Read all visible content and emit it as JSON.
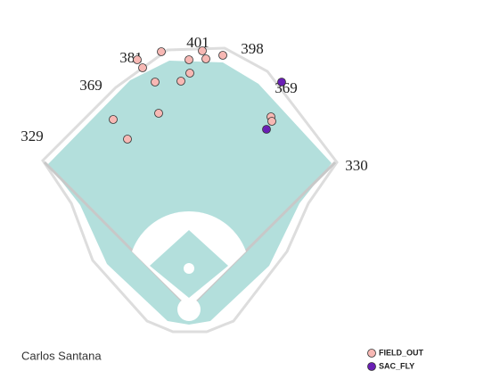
{
  "chart_data": {
    "type": "scatter",
    "player": "Carlos Santana",
    "distances": [
      329,
      369,
      381,
      401,
      398,
      369,
      330
    ],
    "xlim": [
      0,
      552
    ],
    "ylim": [
      425,
      0
    ],
    "series": [
      {
        "name": "FIELD_OUT",
        "color": "#f7b8b4",
        "x": [
          181,
          154,
          160,
          227,
          231,
          212,
          250,
          213,
          203,
          174,
          127,
          143,
          178,
          304,
          305
        ],
        "values": [
          58,
          67,
          76,
          57,
          66,
          67,
          62,
          82,
          91,
          92,
          134,
          156,
          127,
          131,
          136
        ]
      },
      {
        "name": "SAC_FLY",
        "color": "#6a1fb5",
        "x": [
          316,
          299
        ],
        "values": [
          92,
          145
        ]
      }
    ]
  }
}
